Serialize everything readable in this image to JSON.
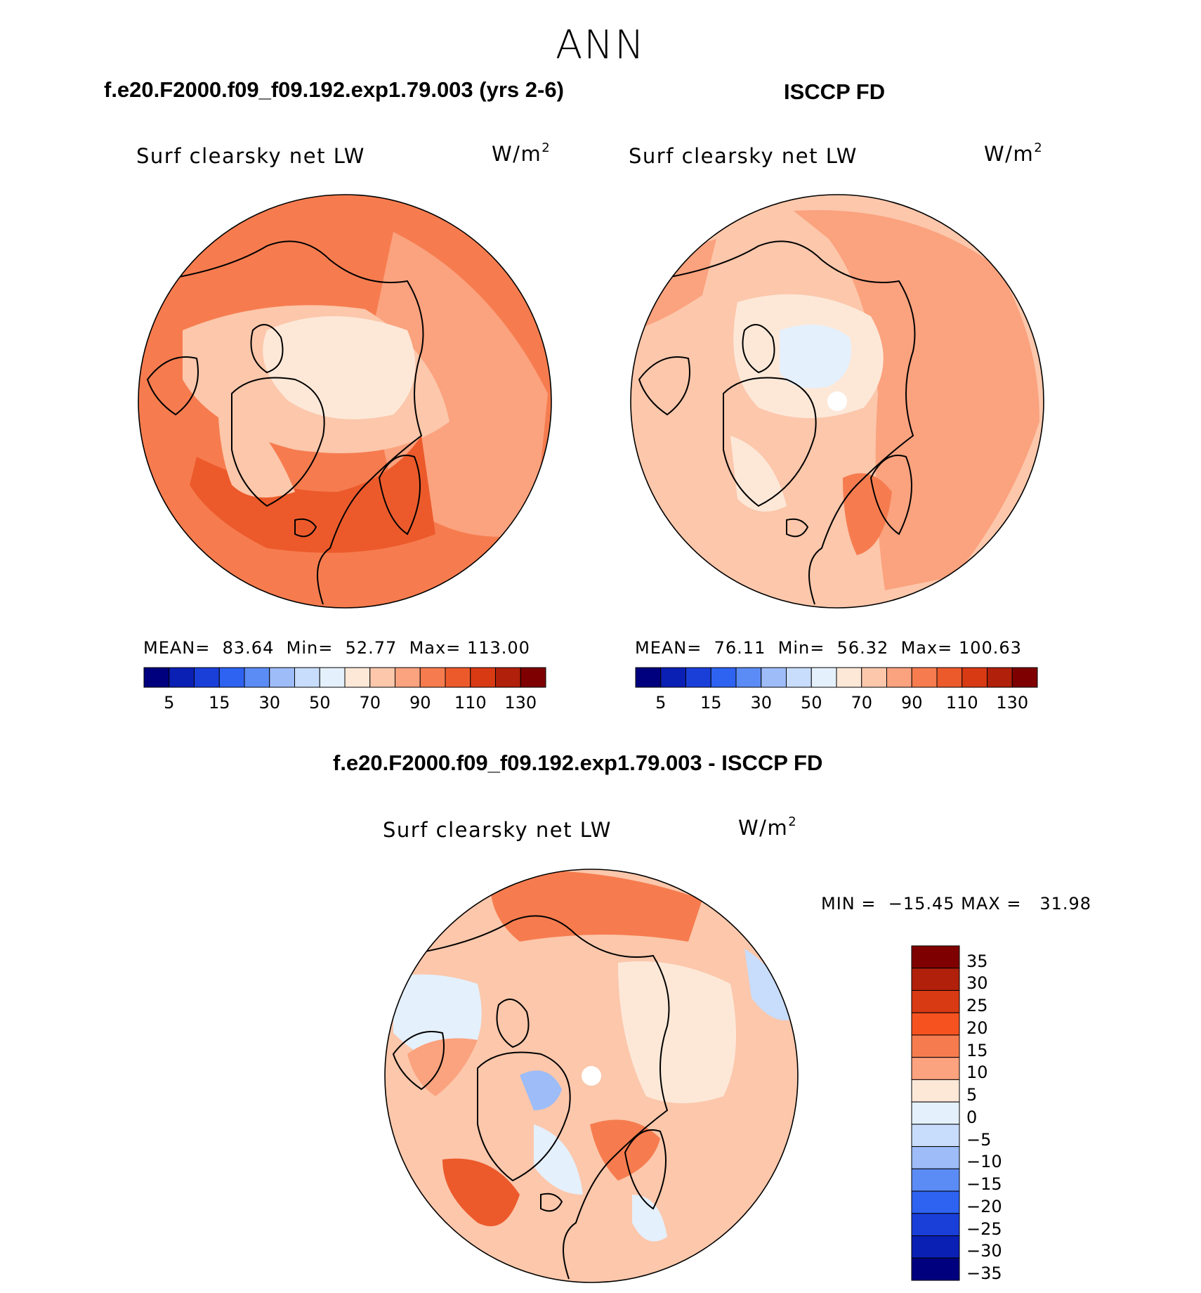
{
  "season": "ANN",
  "panels": {
    "model": {
      "title": "f.e20.F2000.f09_f09.192.exp1.79.003 (yrs 2-6)",
      "variable": "Surf clearsky net LW",
      "units_base": "W/m",
      "units_exp": "2",
      "mean_label": "MEAN=",
      "mean_value": "83.64",
      "min_label": "Min=",
      "min_value": "52.77",
      "max_label": "Max=",
      "max_value": "113.00"
    },
    "obs": {
      "title": "ISCCP FD",
      "variable": "Surf clearsky net LW",
      "units_base": "W/m",
      "units_exp": "2",
      "mean_label": "MEAN=",
      "mean_value": "76.11",
      "min_label": "Min=",
      "min_value": "56.32",
      "max_label": "Max=",
      "max_value": "100.63"
    },
    "diff": {
      "title": "f.e20.F2000.f09_f09.192.exp1.79.003 - ISCCP FD",
      "variable": "Surf clearsky net LW",
      "units_base": "W/m",
      "units_exp": "2",
      "minmax_text": "MIN =  −15.45 MAX =   31.98"
    }
  },
  "chart_data": [
    {
      "type": "heatmap",
      "projection": "north polar stereographic",
      "title": "f.e20.F2000.f09_f09.192.exp1.79.003 (yrs 2-6)",
      "variable": "Surf clearsky net LW",
      "units": "W/m2",
      "mean": 83.64,
      "min": 52.77,
      "max": 113.0,
      "colorbar_tick_labels": [
        "5",
        "15",
        "30",
        "50",
        "70",
        "90",
        "110",
        "130"
      ],
      "colors": [
        "#00007f",
        "#0a1fb3",
        "#1a3fd9",
        "#2e62f0",
        "#5b8cf5",
        "#9dbcf8",
        "#c8dcfb",
        "#e4f0fc",
        "#fde8d8",
        "#fcc7ab",
        "#fba27e",
        "#f67c4f",
        "#ec5a2b",
        "#d83a14",
        "#b0200a",
        "#7f0000"
      ]
    },
    {
      "type": "heatmap",
      "projection": "north polar stereographic",
      "title": "ISCCP FD",
      "variable": "Surf clearsky net LW",
      "units": "W/m2",
      "mean": 76.11,
      "min": 56.32,
      "max": 100.63,
      "colorbar_tick_labels": [
        "5",
        "15",
        "30",
        "50",
        "70",
        "90",
        "110",
        "130"
      ],
      "colors": [
        "#00007f",
        "#0a1fb3",
        "#1a3fd9",
        "#2e62f0",
        "#5b8cf5",
        "#9dbcf8",
        "#c8dcfb",
        "#e4f0fc",
        "#fde8d8",
        "#fcc7ab",
        "#fba27e",
        "#f67c4f",
        "#ec5a2b",
        "#d83a14",
        "#b0200a",
        "#7f0000"
      ]
    },
    {
      "type": "heatmap",
      "projection": "north polar stereographic",
      "title": "f.e20.F2000.f09_f09.192.exp1.79.003 - ISCCP FD",
      "variable": "Surf clearsky net LW",
      "units": "W/m2",
      "min": -15.45,
      "max": 31.98,
      "colorbar_tick_labels": [
        "35",
        "30",
        "25",
        "20",
        "15",
        "10",
        "5",
        "0",
        "−5",
        "−10",
        "−15",
        "−20",
        "−25",
        "−30",
        "−35"
      ],
      "colors_top_to_bottom": [
        "#7f0000",
        "#b0200a",
        "#d83a14",
        "#f5521f",
        "#f67c4f",
        "#fba27e",
        "#fde8d8",
        "#e4f0fc",
        "#c8dcfb",
        "#9dbcf8",
        "#5b8cf5",
        "#2e62f0",
        "#1a3fd9",
        "#0a1fb3",
        "#00007f"
      ]
    }
  ]
}
